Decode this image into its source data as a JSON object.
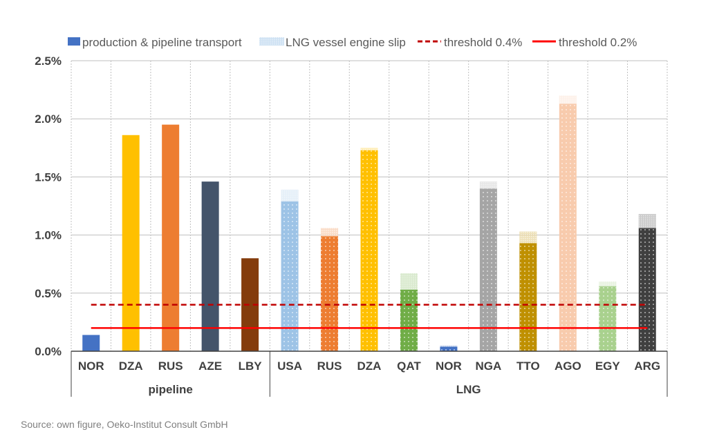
{
  "chart_data": {
    "type": "bar",
    "stacked": true,
    "ylim": [
      0,
      2.5
    ],
    "yticks": [
      "0.0%",
      "0.5%",
      "1.0%",
      "1.5%",
      "2.0%",
      "2.5%"
    ],
    "grid": true,
    "legend_position": "top",
    "legend": [
      {
        "label": "production & pipeline transport",
        "style": "solid-bar"
      },
      {
        "label": "LNG vessel engine slip",
        "style": "hatched-bar"
      },
      {
        "label": "threshold 0.4%",
        "style": "dashed-line",
        "color": "#C00000"
      },
      {
        "label": "threshold 0.2%",
        "style": "solid-line",
        "color": "#FF0000"
      }
    ],
    "groups": [
      {
        "label": "pipeline",
        "count": 5
      },
      {
        "label": "LNG",
        "count": 10
      }
    ],
    "categories": [
      "NOR",
      "DZA",
      "RUS",
      "AZE",
      "LBY",
      "USA",
      "RUS",
      "DZA",
      "QAT",
      "NOR",
      "NGA",
      "TTO",
      "AGO",
      "EGY",
      "ARG"
    ],
    "series": [
      {
        "name": "production & pipeline transport",
        "values": [
          0.14,
          1.86,
          1.95,
          1.46,
          0.8,
          1.29,
          0.99,
          1.73,
          0.53,
          0.04,
          1.4,
          0.93,
          2.13,
          0.56,
          1.06
        ]
      },
      {
        "name": "LNG vessel engine slip",
        "values": [
          0,
          0,
          0,
          0,
          0,
          0.1,
          0.07,
          0.02,
          0.14,
          0.01,
          0.06,
          0.1,
          0.07,
          0.04,
          0.12
        ]
      }
    ],
    "colors": [
      "#4472C4",
      "#FFC000",
      "#ED7D31",
      "#44546A",
      "#843C0C",
      "#9DC3E6",
      "#ED7D31",
      "#FFC000",
      "#70AD47",
      "#4472C4",
      "#A5A5A5",
      "#BF9000",
      "#F8CBAD",
      "#A9D18E",
      "#404040"
    ],
    "thresholds": [
      {
        "name": "threshold 0.4%",
        "value": 0.4,
        "color": "#C00000",
        "dashed": true
      },
      {
        "name": "threshold 0.2%",
        "value": 0.2,
        "color": "#FF0000",
        "dashed": false
      }
    ]
  },
  "source": "Source: own figure, Oeko-Institut Consult GmbH"
}
